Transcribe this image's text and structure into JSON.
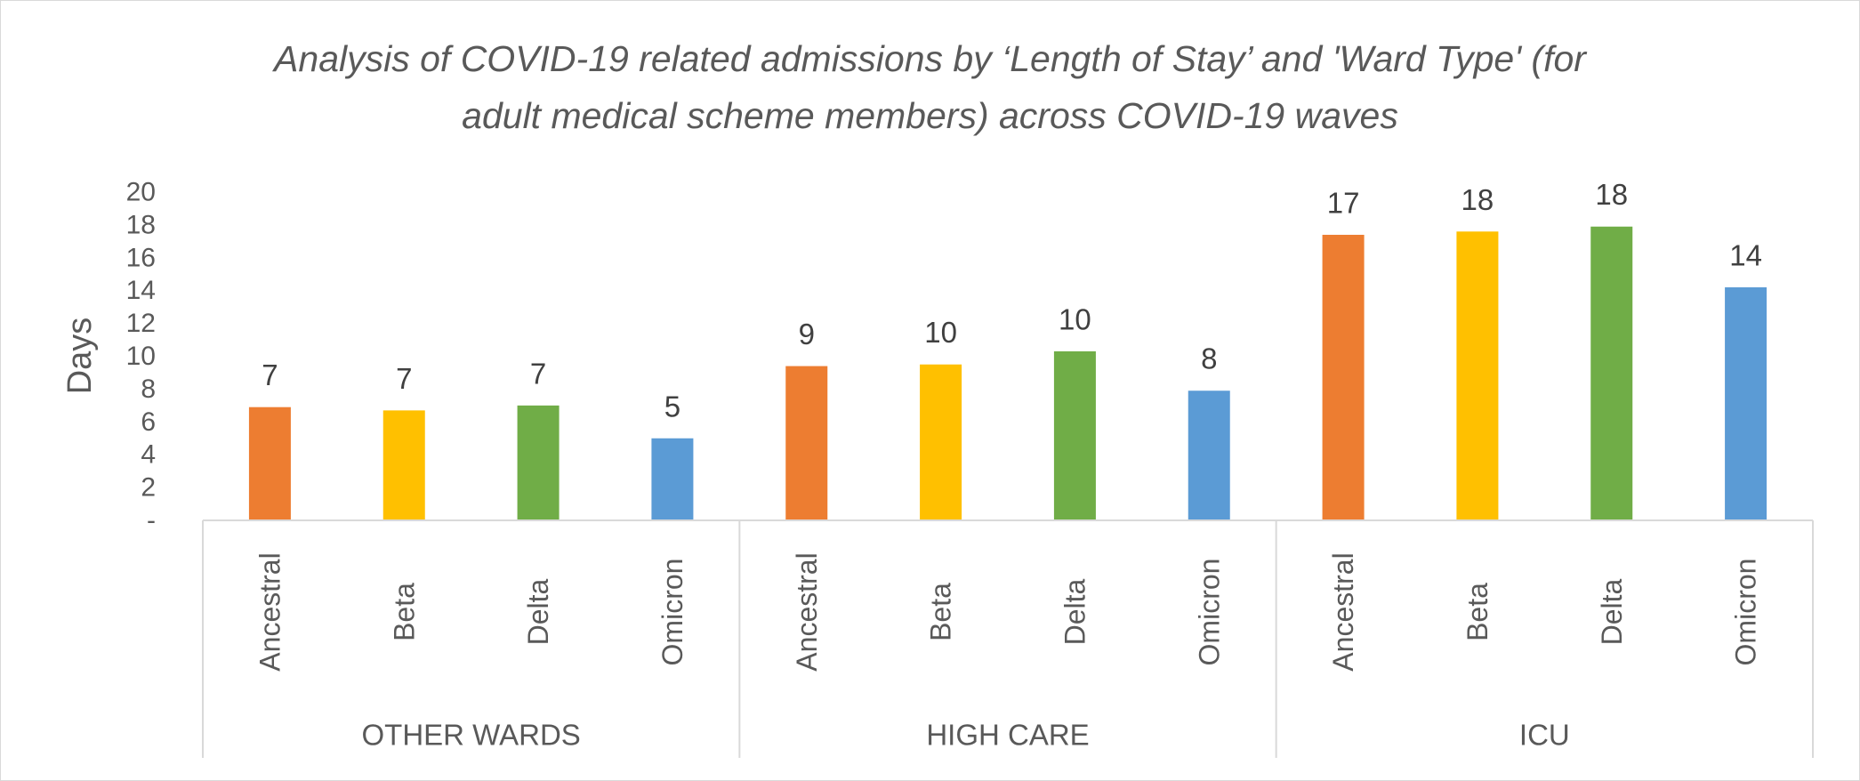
{
  "chart_data": {
    "type": "bar",
    "title_lines": [
      "Analysis of COVID-19 related admissions by ‘Length of Stay’ and 'Ward Type' (for",
      "adult medical scheme members) across COVID-19 waves"
    ],
    "ylabel": "Days",
    "xlabel": "",
    "ylim": [
      0,
      20
    ],
    "y_ticks": [
      {
        "value": 0,
        "label": "-"
      },
      {
        "value": 2,
        "label": "2"
      },
      {
        "value": 4,
        "label": "4"
      },
      {
        "value": 6,
        "label": "6"
      },
      {
        "value": 8,
        "label": "8"
      },
      {
        "value": 10,
        "label": "10"
      },
      {
        "value": 12,
        "label": "12"
      },
      {
        "value": 14,
        "label": "14"
      },
      {
        "value": 16,
        "label": "16"
      },
      {
        "value": 18,
        "label": "18"
      },
      {
        "value": 20,
        "label": "20"
      }
    ],
    "grid": false,
    "legend": "none",
    "colors": {
      "Ancestral": "#ed7d31",
      "Beta": "#ffc000",
      "Delta": "#70ad47",
      "Omicron": "#5b9bd5"
    },
    "groups": [
      {
        "name": "OTHER WARDS",
        "bars": [
          {
            "category": "Ancestral",
            "value": 6.9,
            "label": "7"
          },
          {
            "category": "Beta",
            "value": 6.7,
            "label": "7"
          },
          {
            "category": "Delta",
            "value": 7.0,
            "label": "7"
          },
          {
            "category": "Omicron",
            "value": 5.0,
            "label": "5"
          }
        ]
      },
      {
        "name": "HIGH CARE",
        "bars": [
          {
            "category": "Ancestral",
            "value": 9.4,
            "label": "9"
          },
          {
            "category": "Beta",
            "value": 9.5,
            "label": "10"
          },
          {
            "category": "Delta",
            "value": 10.3,
            "label": "10"
          },
          {
            "category": "Omicron",
            "value": 7.9,
            "label": "8"
          }
        ]
      },
      {
        "name": "ICU",
        "bars": [
          {
            "category": "Ancestral",
            "value": 17.4,
            "label": "17"
          },
          {
            "category": "Beta",
            "value": 17.6,
            "label": "18"
          },
          {
            "category": "Delta",
            "value": 17.9,
            "label": "18"
          },
          {
            "category": "Omicron",
            "value": 14.2,
            "label": "14"
          }
        ]
      }
    ]
  }
}
